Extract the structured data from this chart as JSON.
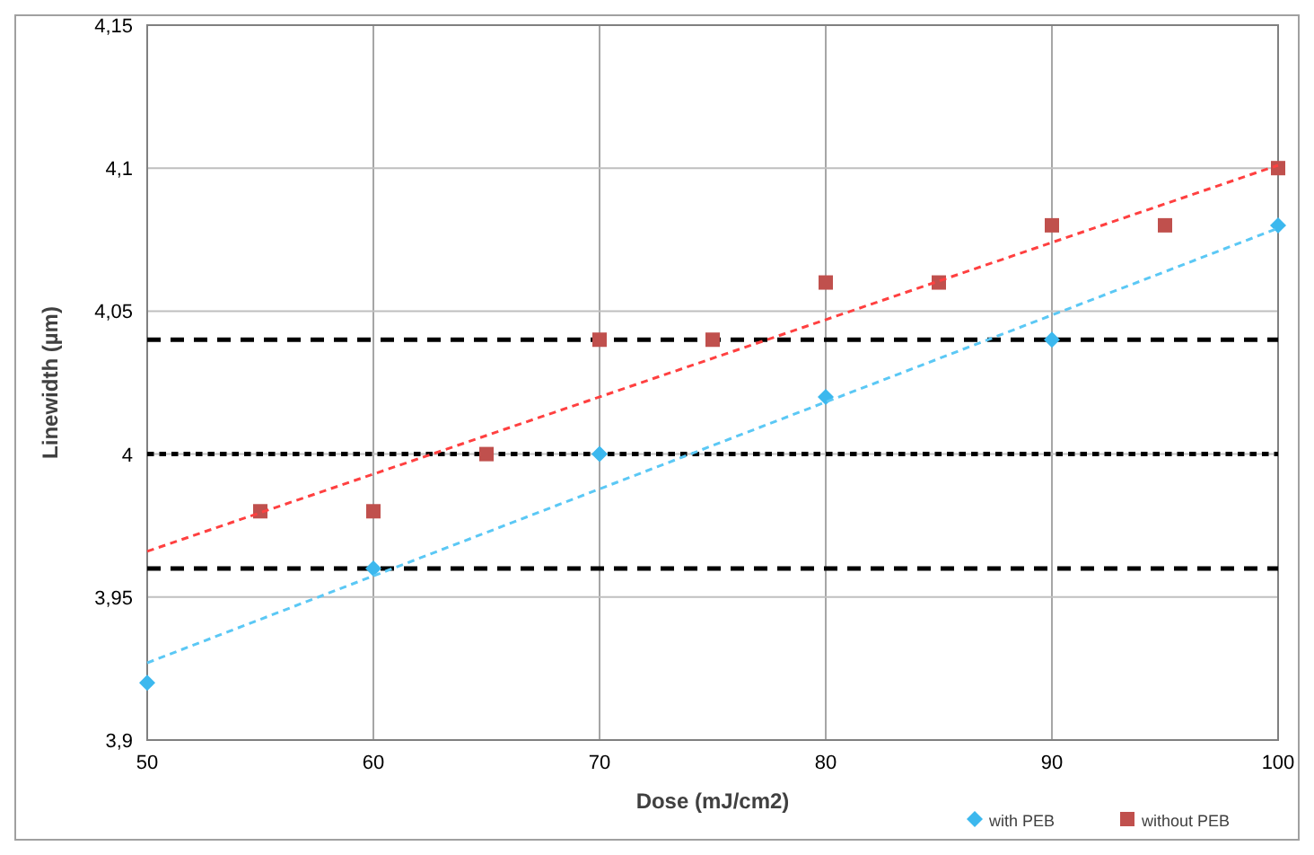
{
  "chart_data": {
    "type": "scatter",
    "xlabel": "Dose (mJ/cm2)",
    "ylabel": "Linewidth (µm)",
    "xlim": [
      50,
      100
    ],
    "xticks": [
      50,
      60,
      70,
      80,
      90,
      100
    ],
    "ylim": [
      3.9,
      4.15
    ],
    "yticks": [
      {
        "value": 3.9,
        "label": "3,9"
      },
      {
        "value": 3.95,
        "label": "3,95"
      },
      {
        "value": 4,
        "label": "4"
      },
      {
        "value": 4.05,
        "label": "4,05"
      },
      {
        "value": 4.1,
        "label": "4,1"
      },
      {
        "value": 4.15,
        "label": "4,15"
      }
    ],
    "grid": true,
    "legend": "bottom right",
    "series": [
      {
        "name": "with PEB",
        "marker": "diamond",
        "color": "#3cb8ee",
        "x": [
          50,
          60,
          70,
          80,
          90,
          100
        ],
        "values": [
          3.92,
          3.96,
          4.0,
          4.02,
          4.04,
          4.08
        ]
      },
      {
        "name": "without PEB",
        "marker": "square",
        "color": "#c0504d",
        "x": [
          55,
          60,
          65,
          70,
          75,
          80,
          85,
          90,
          95,
          100
        ],
        "values": [
          3.98,
          3.98,
          4.0,
          4.04,
          4.04,
          4.06,
          4.06,
          4.08,
          4.08,
          4.1
        ]
      },
      {
        "type": "line",
        "line_style": "dashed",
        "marker": "none",
        "color": "#5bc8f5",
        "x": [
          50,
          100
        ],
        "values": [
          3.927,
          4.079
        ]
      },
      {
        "type": "line",
        "line_style": "dashed",
        "marker": "none",
        "color": "#ff4040",
        "x": [
          50,
          100
        ],
        "values": [
          3.966,
          4.101
        ]
      }
    ],
    "ref_lines": [
      {
        "axis": "y",
        "value": 4.04,
        "color": "#000000",
        "line_style": "dashed"
      },
      {
        "axis": "y",
        "value": 4.0,
        "color": "#000000",
        "line_style": "dotted"
      },
      {
        "axis": "y",
        "value": 3.96,
        "color": "#000000",
        "line_style": "dashed"
      }
    ]
  }
}
